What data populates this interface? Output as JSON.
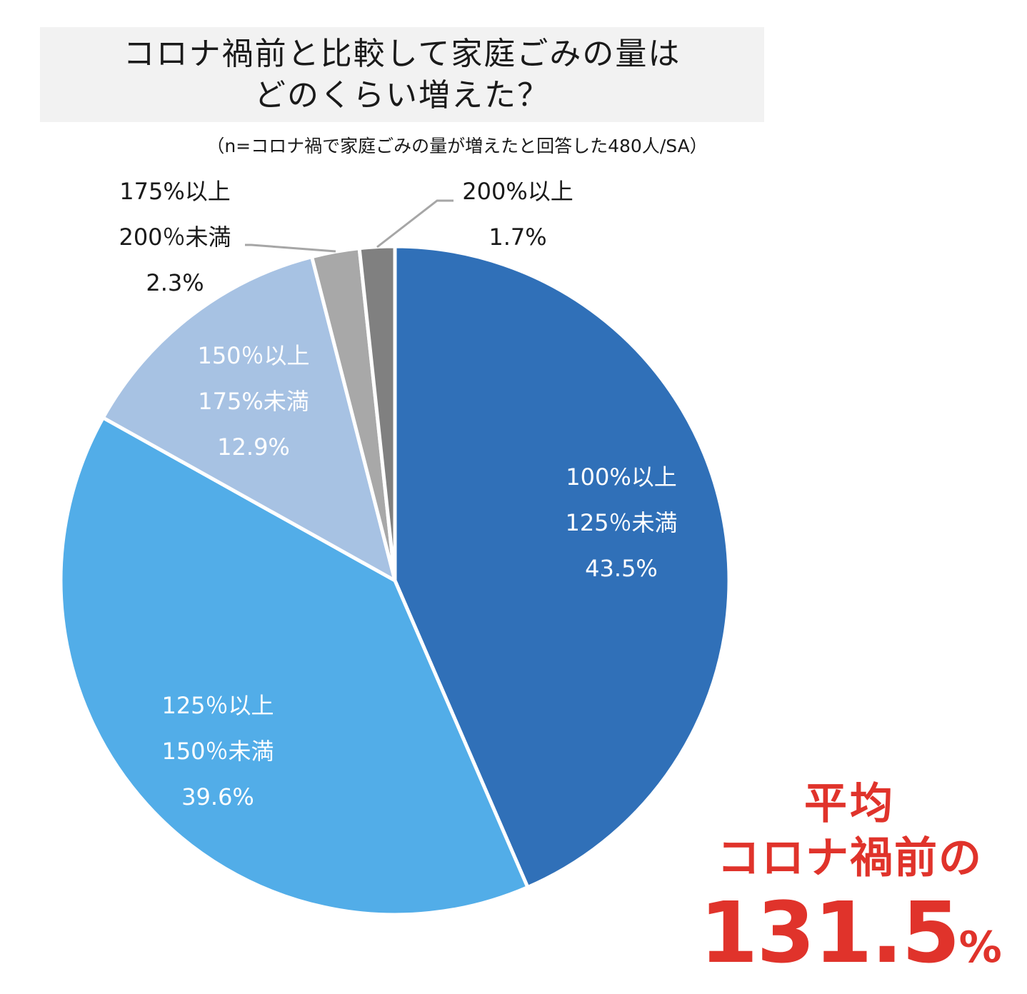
{
  "title": {
    "line1": "コロナ禍前と比較して家庭ごみの量は",
    "line2": "どのくらい増えた？"
  },
  "note": "（n=コロナ禍で家庭ごみの量が増えたと回答した480人/SA）",
  "chart_data": {
    "type": "pie",
    "start": "12 o'clock",
    "direction": "clockwise",
    "slices": [
      {
        "label_lines": [
          "100%以上",
          "125％未満",
          "43.5%"
        ],
        "category": "100%以上125％未満",
        "value": 43.5,
        "display": "43.5%",
        "color": "#3070b8",
        "label_position": "inside"
      },
      {
        "label_lines": [
          "125％以上",
          "150％未満",
          "39.6%"
        ],
        "category": "125％以上150％未満",
        "value": 39.6,
        "display": "39.6%",
        "color": "#52ade8",
        "label_position": "inside"
      },
      {
        "label_lines": [
          "150％以上",
          "175%未満",
          "12.9%"
        ],
        "category": "150％以上175%未満",
        "value": 12.9,
        "display": "12.9%",
        "color": "#a7c2e3",
        "label_position": "inside"
      },
      {
        "label_lines": [
          "175%以上",
          "200％未満",
          "2.3%"
        ],
        "category": "175%以上200％未満",
        "value": 2.3,
        "display": "2.3%",
        "color": "#a8a8a8",
        "label_position": "outside"
      },
      {
        "label_lines": [
          "200%以上",
          "1.7%"
        ],
        "category": "200%以上",
        "value": 1.7,
        "display": "1.7%",
        "color": "#808080",
        "label_position": "outside"
      }
    ]
  },
  "average": {
    "line1": "平均",
    "line2": "コロナ禍前の",
    "value": "131.5",
    "unit": "%"
  }
}
